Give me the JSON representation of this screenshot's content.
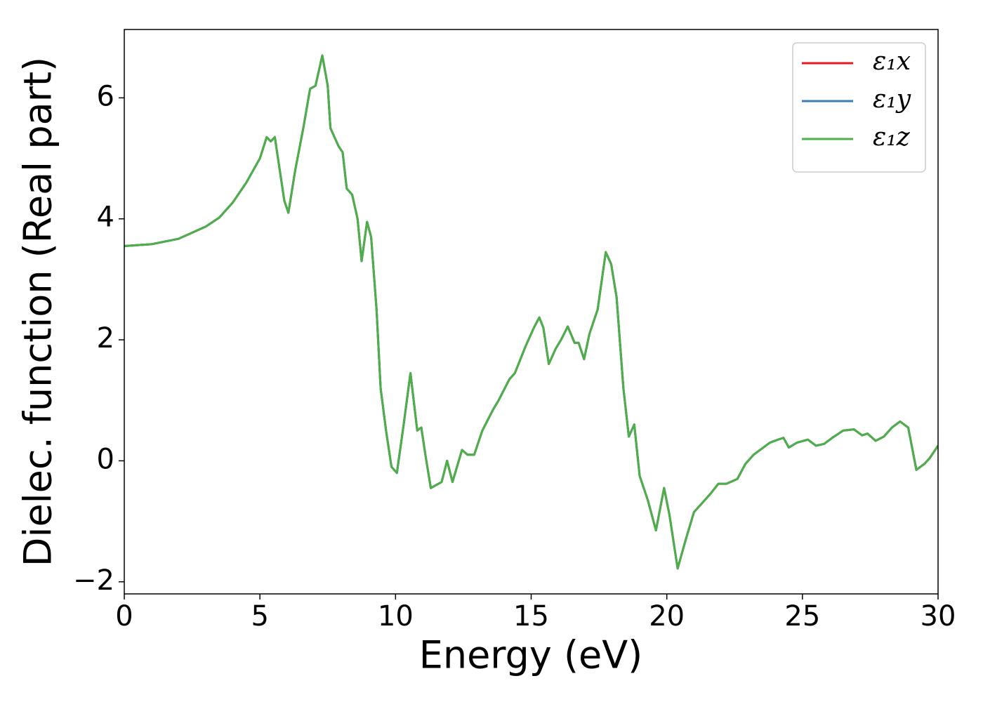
{
  "chart_data": {
    "type": "line",
    "xlabel": "Energy (eV)",
    "ylabel": "Dielec. function (Real part)",
    "x": [
      0,
      1,
      2,
      3,
      3.5,
      4,
      4.5,
      5,
      5.25,
      5.4,
      5.55,
      5.7,
      5.9,
      6.05,
      6.3,
      6.6,
      6.85,
      7.05,
      7.3,
      7.5,
      7.6,
      7.9,
      8.05,
      8.2,
      8.4,
      8.6,
      8.75,
      8.95,
      9.1,
      9.3,
      9.45,
      9.65,
      9.85,
      10.05,
      10.3,
      10.55,
      10.8,
      10.95,
      11.1,
      11.3,
      11.5,
      11.7,
      11.9,
      12.1,
      12.45,
      12.65,
      12.9,
      13.2,
      13.6,
      13.8,
      14.2,
      14.4,
      14.8,
      15.1,
      15.3,
      15.45,
      15.65,
      15.9,
      16.1,
      16.35,
      16.6,
      16.75,
      16.95,
      17.15,
      17.45,
      17.75,
      17.95,
      18.15,
      18.4,
      18.6,
      18.8,
      19.0,
      19.3,
      19.6,
      19.9,
      20.1,
      20.4,
      20.7,
      21.0,
      21.3,
      21.6,
      21.9,
      22.2,
      22.6,
      22.9,
      23.2,
      23.5,
      23.8,
      24.1,
      24.3,
      24.5,
      24.8,
      25.2,
      25.5,
      25.8,
      26.1,
      26.5,
      26.9,
      27.2,
      27.4,
      27.7,
      28.0,
      28.3,
      28.6,
      28.9,
      29.2,
      29.5,
      29.7,
      30.0
    ],
    "series": [
      {
        "name": "ε₁x",
        "color": "#e41a1c",
        "values": [
          3.55,
          3.58,
          3.67,
          3.87,
          4.02,
          4.27,
          4.6,
          5.0,
          5.35,
          5.28,
          5.35,
          4.9,
          4.3,
          4.1,
          4.8,
          5.5,
          6.15,
          6.2,
          6.7,
          6.2,
          5.5,
          5.2,
          5.1,
          4.5,
          4.4,
          4.0,
          3.3,
          3.95,
          3.7,
          2.5,
          1.2,
          0.5,
          -0.1,
          -0.2,
          0.6,
          1.45,
          0.5,
          0.55,
          0.1,
          -0.45,
          -0.4,
          -0.35,
          0.0,
          -0.35,
          0.18,
          0.1,
          0.1,
          0.5,
          0.85,
          1.0,
          1.35,
          1.45,
          1.9,
          2.2,
          2.37,
          2.2,
          1.6,
          1.85,
          2.0,
          2.22,
          1.95,
          1.95,
          1.68,
          2.1,
          2.5,
          3.45,
          3.25,
          2.7,
          1.2,
          0.4,
          0.6,
          -0.25,
          -0.65,
          -1.15,
          -0.45,
          -0.9,
          -1.78,
          -1.3,
          -0.85,
          -0.7,
          -0.55,
          -0.38,
          -0.38,
          -0.3,
          -0.05,
          0.1,
          0.2,
          0.3,
          0.35,
          0.38,
          0.22,
          0.3,
          0.35,
          0.25,
          0.28,
          0.38,
          0.5,
          0.52,
          0.42,
          0.45,
          0.33,
          0.4,
          0.55,
          0.65,
          0.55,
          -0.15,
          -0.05,
          0.05,
          0.25
        ]
      },
      {
        "name": "ε₁y",
        "color": "#377eb8",
        "values": [
          3.55,
          3.58,
          3.67,
          3.87,
          4.02,
          4.27,
          4.6,
          5.0,
          5.35,
          5.28,
          5.35,
          4.9,
          4.3,
          4.1,
          4.8,
          5.5,
          6.15,
          6.2,
          6.7,
          6.2,
          5.5,
          5.2,
          5.1,
          4.5,
          4.4,
          4.0,
          3.3,
          3.95,
          3.7,
          2.5,
          1.2,
          0.5,
          -0.1,
          -0.2,
          0.6,
          1.45,
          0.5,
          0.55,
          0.1,
          -0.45,
          -0.4,
          -0.35,
          0.0,
          -0.35,
          0.18,
          0.1,
          0.1,
          0.5,
          0.85,
          1.0,
          1.35,
          1.45,
          1.9,
          2.2,
          2.37,
          2.2,
          1.6,
          1.85,
          2.0,
          2.22,
          1.95,
          1.95,
          1.68,
          2.1,
          2.5,
          3.45,
          3.25,
          2.7,
          1.2,
          0.4,
          0.6,
          -0.25,
          -0.65,
          -1.15,
          -0.45,
          -0.9,
          -1.78,
          -1.3,
          -0.85,
          -0.7,
          -0.55,
          -0.38,
          -0.38,
          -0.3,
          -0.05,
          0.1,
          0.2,
          0.3,
          0.35,
          0.38,
          0.22,
          0.3,
          0.35,
          0.25,
          0.28,
          0.38,
          0.5,
          0.52,
          0.42,
          0.45,
          0.33,
          0.4,
          0.55,
          0.65,
          0.55,
          -0.15,
          -0.05,
          0.05,
          0.25
        ]
      },
      {
        "name": "ε₁z",
        "color": "#4daf4a",
        "values": [
          3.55,
          3.58,
          3.67,
          3.87,
          4.02,
          4.27,
          4.6,
          5.0,
          5.35,
          5.28,
          5.35,
          4.9,
          4.3,
          4.1,
          4.8,
          5.5,
          6.15,
          6.2,
          6.7,
          6.2,
          5.5,
          5.2,
          5.1,
          4.5,
          4.4,
          4.0,
          3.3,
          3.95,
          3.7,
          2.5,
          1.2,
          0.5,
          -0.1,
          -0.2,
          0.6,
          1.45,
          0.5,
          0.55,
          0.1,
          -0.45,
          -0.4,
          -0.35,
          0.0,
          -0.35,
          0.18,
          0.1,
          0.1,
          0.5,
          0.85,
          1.0,
          1.35,
          1.45,
          1.9,
          2.2,
          2.37,
          2.2,
          1.6,
          1.85,
          2.0,
          2.22,
          1.95,
          1.95,
          1.68,
          2.1,
          2.5,
          3.45,
          3.25,
          2.7,
          1.2,
          0.4,
          0.6,
          -0.25,
          -0.65,
          -1.15,
          -0.45,
          -0.9,
          -1.78,
          -1.3,
          -0.85,
          -0.7,
          -0.55,
          -0.38,
          -0.38,
          -0.3,
          -0.05,
          0.1,
          0.2,
          0.3,
          0.35,
          0.38,
          0.22,
          0.3,
          0.35,
          0.25,
          0.28,
          0.38,
          0.5,
          0.52,
          0.42,
          0.45,
          0.33,
          0.4,
          0.55,
          0.65,
          0.55,
          -0.15,
          -0.05,
          0.05,
          0.25
        ]
      }
    ],
    "xlim": [
      0,
      30
    ],
    "xticks": [
      0,
      5,
      10,
      15,
      20,
      25,
      30
    ],
    "ylim": [
      -2.2,
      7.13
    ],
    "yticks": [
      {
        "value": -2,
        "label": "−2"
      },
      0,
      2,
      4,
      6
    ],
    "grid": false,
    "legend": "upper right"
  }
}
